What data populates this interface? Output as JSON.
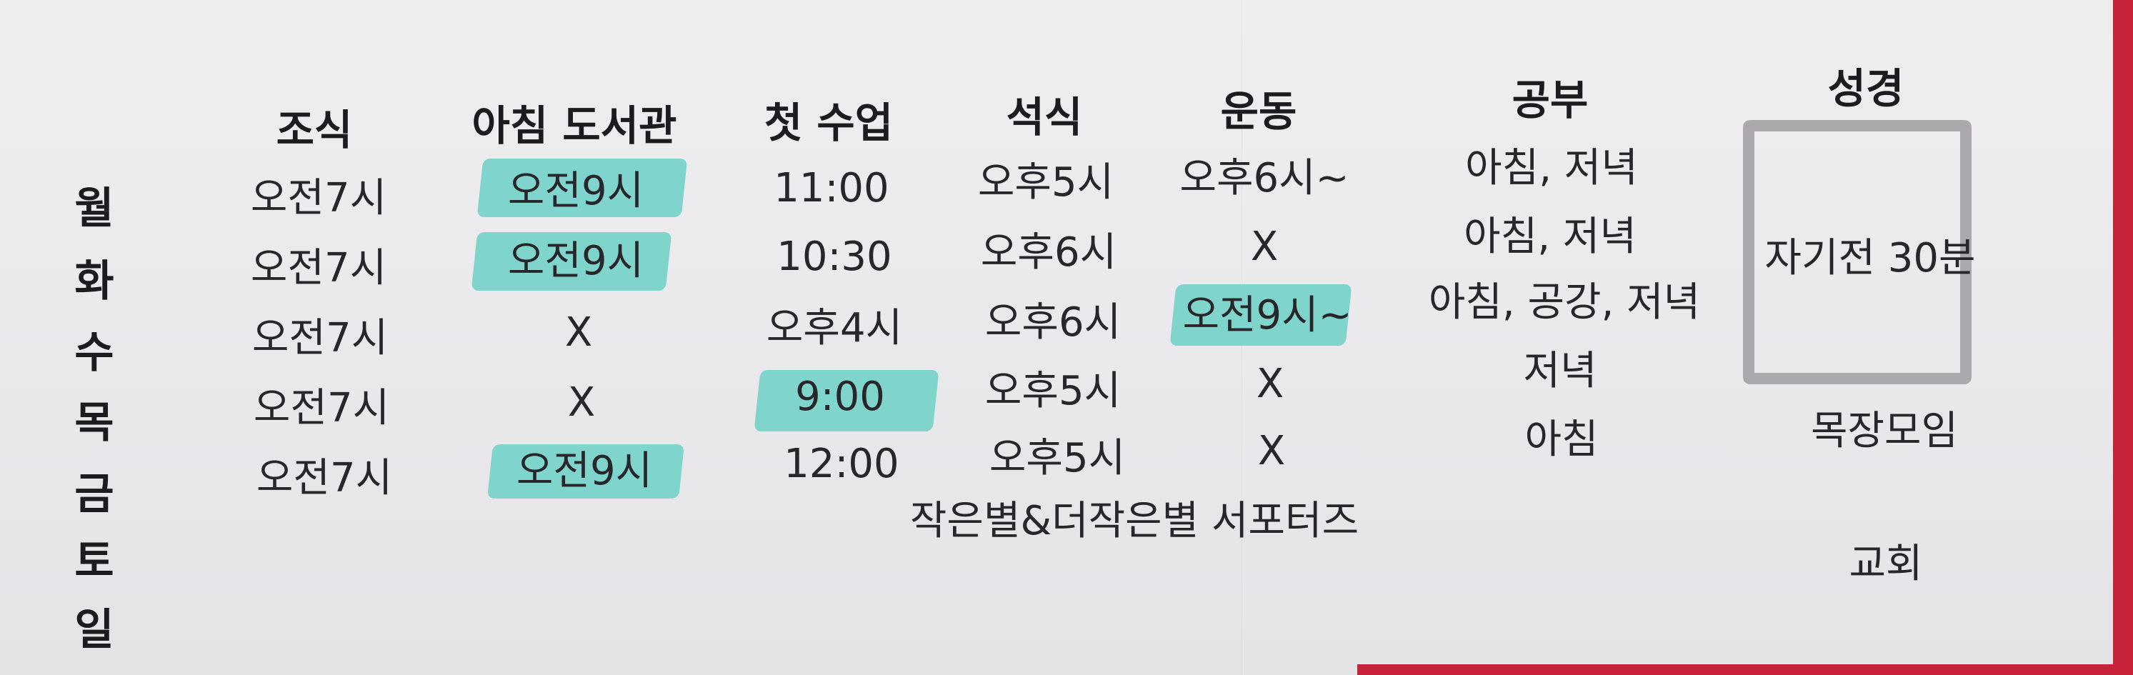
{
  "headers": {
    "breakfast": "조식",
    "library": "아침 도서관",
    "first_class": "첫 수업",
    "dinner": "석식",
    "exercise": "운동",
    "study": "공부",
    "bible": "성경"
  },
  "days": [
    "월",
    "화",
    "수",
    "목",
    "금",
    "토",
    "일"
  ],
  "rows": [
    {
      "breakfast": "오전7시",
      "library": "오전9시",
      "first_class": "11:00",
      "dinner": "오후5시",
      "exercise": "오후6시~",
      "study": "아침, 저녁"
    },
    {
      "breakfast": "오전7시",
      "library": "오전9시",
      "first_class": "10:30",
      "dinner": "오후6시",
      "exercise": "X",
      "study": "아침, 저녁"
    },
    {
      "breakfast": "오전7시",
      "library": "X",
      "first_class": "오후4시",
      "dinner": "오후6시",
      "exercise": "오전9시~",
      "study": "아침, 공강, 저녁"
    },
    {
      "breakfast": "오전7시",
      "library": "X",
      "first_class": "9:00",
      "dinner": "오후5시",
      "exercise": "X",
      "study": "저녁"
    },
    {
      "breakfast": "오전7시",
      "library": "오전9시",
      "first_class": "12:00",
      "dinner": "오후5시",
      "exercise": "X",
      "study": "아침"
    }
  ],
  "bible_note": "자기전 30분",
  "cell_group": "목장모임",
  "saturday_note": "작은별&더작은별 서포터즈",
  "sunday_note": "교회",
  "colors": {
    "highlight": "#73d1c9",
    "accent_edge": "#c6233a",
    "paper": "#ecebee"
  }
}
